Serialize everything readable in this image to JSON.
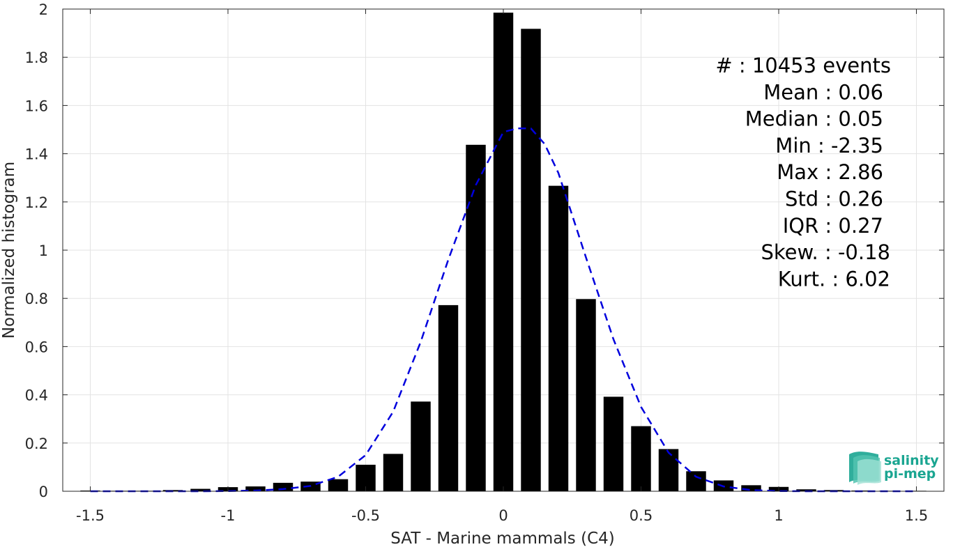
{
  "chart_data": {
    "type": "bar",
    "title": "",
    "xlabel": "SAT - Marine mammals (C4)",
    "ylabel": "Normalized histogram",
    "xlim": [
      -1.6,
      1.6
    ],
    "ylim": [
      0,
      2
    ],
    "xticks": [
      -1.5,
      -1,
      -0.5,
      0,
      0.5,
      1,
      1.5
    ],
    "xtick_labels": [
      "-1.5",
      "-1",
      "-0.5",
      "0",
      "0.5",
      "1",
      "1.5"
    ],
    "yticks": [
      0,
      0.2,
      0.4,
      0.6,
      0.8,
      1,
      1.2,
      1.4,
      1.6,
      1.8,
      2
    ],
    "ytick_labels": [
      "0",
      "0.2",
      "0.4",
      "0.6",
      "0.8",
      "1",
      "1.2",
      "1.4",
      "1.6",
      "1.8",
      "2"
    ],
    "grid": true,
    "bar_color": "#000000",
    "bin_width": 0.1,
    "x": [
      -1.5,
      -1.4,
      -1.3,
      -1.2,
      -1.1,
      -1.0,
      -0.9,
      -0.8,
      -0.7,
      -0.6,
      -0.5,
      -0.4,
      -0.3,
      -0.2,
      -0.1,
      0.0,
      0.1,
      0.2,
      0.3,
      0.4,
      0.5,
      0.6,
      0.7,
      0.8,
      0.9,
      1.0,
      1.1,
      1.2,
      1.3,
      1.4,
      1.5
    ],
    "values": [
      0.003,
      0.002,
      0.002,
      0.005,
      0.01,
      0.017,
      0.02,
      0.035,
      0.04,
      0.05,
      0.11,
      0.155,
      0.372,
      0.772,
      1.437,
      1.985,
      1.918,
      1.267,
      0.797,
      0.392,
      0.27,
      0.175,
      0.083,
      0.045,
      0.025,
      0.018,
      0.008,
      0.005,
      0.003,
      0.002,
      0.002
    ],
    "fit_curve": {
      "style": "dashed",
      "color": "#0000dd",
      "x": [
        -1.5,
        -1.4,
        -1.3,
        -1.2,
        -1.1,
        -1.0,
        -0.9,
        -0.8,
        -0.7,
        -0.6,
        -0.5,
        -0.4,
        -0.3,
        -0.2,
        -0.1,
        0.0,
        0.05,
        0.1,
        0.15,
        0.2,
        0.3,
        0.4,
        0.5,
        0.6,
        0.7,
        0.8,
        0.9,
        1.0,
        1.1,
        1.2,
        1.3,
        1.4,
        1.5
      ],
      "y": [
        0.0,
        0.0,
        0.0,
        0.0,
        0.0,
        0.001,
        0.003,
        0.009,
        0.022,
        0.06,
        0.15,
        0.33,
        0.62,
        0.96,
        1.27,
        1.49,
        1.505,
        1.505,
        1.44,
        1.32,
        0.97,
        0.63,
        0.35,
        0.16,
        0.06,
        0.02,
        0.005,
        0.001,
        0.0,
        0.0,
        0.0,
        0.0,
        0.0
      ]
    },
    "stats": [
      "#  : 10453 events",
      "Mean : 0.06",
      "Median : 0.05",
      "Min : -2.35",
      "Max : 2.86",
      "Std : 0.26",
      "IQR : 0.27",
      "Skew. : -0.18",
      "Kurt. : 6.02"
    ]
  },
  "logo": {
    "line1": "salinity",
    "line2": "pi-mep",
    "color": "#1aa591"
  }
}
